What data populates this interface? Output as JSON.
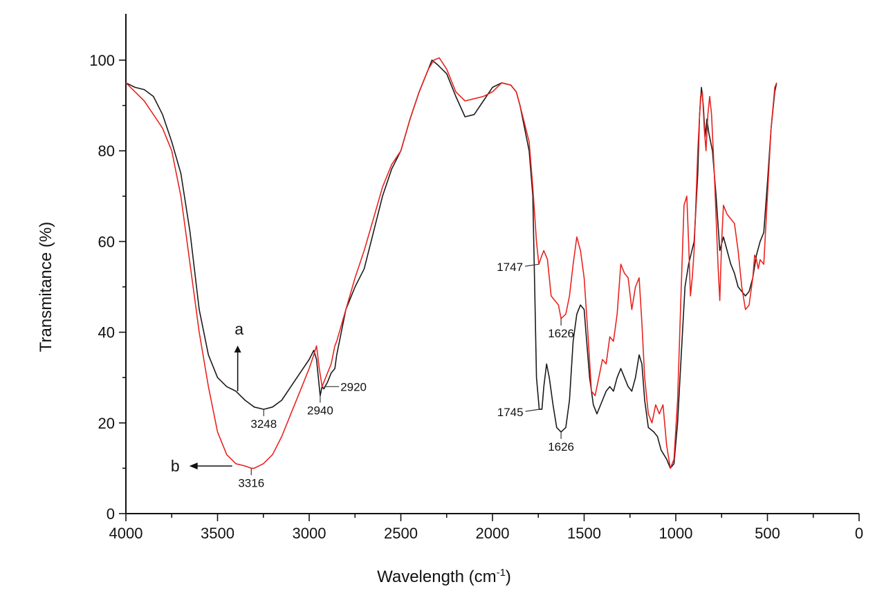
{
  "chart_data": {
    "type": "line",
    "xlabel": "Wavelength (cm",
    "xlabel_sup": "-1",
    "xlabel_close": ")",
    "ylabel": "Transmitance (%)",
    "xlim": [
      4000,
      0
    ],
    "ylim": [
      0,
      110
    ],
    "x_ticks": [
      4000,
      3500,
      3000,
      2500,
      2000,
      1500,
      1000,
      500,
      0
    ],
    "y_ticks": [
      0,
      20,
      40,
      60,
      80,
      100
    ],
    "grid": false,
    "series": [
      {
        "label": "a",
        "color": "#1a1a1a",
        "points": [
          [
            4000,
            95
          ],
          [
            3950,
            94
          ],
          [
            3900,
            93.5
          ],
          [
            3850,
            92
          ],
          [
            3800,
            88
          ],
          [
            3750,
            82
          ],
          [
            3700,
            75
          ],
          [
            3650,
            62
          ],
          [
            3600,
            45
          ],
          [
            3550,
            35
          ],
          [
            3500,
            30
          ],
          [
            3450,
            28
          ],
          [
            3400,
            27
          ],
          [
            3350,
            25
          ],
          [
            3300,
            23.5
          ],
          [
            3248,
            23
          ],
          [
            3200,
            23.5
          ],
          [
            3150,
            25
          ],
          [
            3100,
            28
          ],
          [
            3050,
            31
          ],
          [
            3000,
            34
          ],
          [
            2975,
            36
          ],
          [
            2960,
            34
          ],
          [
            2940,
            26
          ],
          [
            2930,
            28
          ],
          [
            2920,
            27.5
          ],
          [
            2900,
            29
          ],
          [
            2880,
            31
          ],
          [
            2860,
            32
          ],
          [
            2850,
            35
          ],
          [
            2800,
            45
          ],
          [
            2750,
            50
          ],
          [
            2700,
            54
          ],
          [
            2650,
            62
          ],
          [
            2600,
            70
          ],
          [
            2550,
            76
          ],
          [
            2500,
            80
          ],
          [
            2450,
            87
          ],
          [
            2400,
            93
          ],
          [
            2350,
            98
          ],
          [
            2330,
            100
          ],
          [
            2300,
            99
          ],
          [
            2250,
            97
          ],
          [
            2200,
            92
          ],
          [
            2150,
            87.5
          ],
          [
            2100,
            88
          ],
          [
            2050,
            91
          ],
          [
            2000,
            94
          ],
          [
            1950,
            95
          ],
          [
            1900,
            94.5
          ],
          [
            1870,
            93
          ],
          [
            1850,
            90
          ],
          [
            1800,
            80
          ],
          [
            1780,
            70
          ],
          [
            1770,
            50
          ],
          [
            1760,
            30
          ],
          [
            1745,
            23
          ],
          [
            1730,
            23
          ],
          [
            1720,
            28
          ],
          [
            1705,
            33
          ],
          [
            1690,
            30
          ],
          [
            1670,
            24
          ],
          [
            1650,
            19
          ],
          [
            1626,
            18
          ],
          [
            1600,
            19
          ],
          [
            1580,
            25
          ],
          [
            1560,
            38
          ],
          [
            1540,
            44
          ],
          [
            1520,
            46
          ],
          [
            1500,
            45
          ],
          [
            1490,
            40
          ],
          [
            1470,
            30
          ],
          [
            1450,
            24
          ],
          [
            1430,
            22
          ],
          [
            1400,
            25
          ],
          [
            1380,
            27
          ],
          [
            1360,
            28
          ],
          [
            1340,
            27
          ],
          [
            1320,
            30
          ],
          [
            1300,
            32
          ],
          [
            1280,
            30
          ],
          [
            1260,
            28
          ],
          [
            1240,
            27
          ],
          [
            1220,
            30
          ],
          [
            1200,
            35
          ],
          [
            1185,
            33
          ],
          [
            1170,
            25
          ],
          [
            1150,
            19
          ],
          [
            1120,
            18
          ],
          [
            1100,
            17
          ],
          [
            1080,
            14
          ],
          [
            1050,
            12
          ],
          [
            1030,
            10
          ],
          [
            1010,
            11
          ],
          [
            990,
            20
          ],
          [
            970,
            35
          ],
          [
            950,
            50
          ],
          [
            930,
            55
          ],
          [
            900,
            60
          ],
          [
            880,
            75
          ],
          [
            870,
            88
          ],
          [
            860,
            94
          ],
          [
            850,
            90
          ],
          [
            840,
            83
          ],
          [
            830,
            87
          ],
          [
            820,
            84
          ],
          [
            800,
            80
          ],
          [
            780,
            70
          ],
          [
            760,
            58
          ],
          [
            740,
            61
          ],
          [
            720,
            58
          ],
          [
            700,
            55
          ],
          [
            680,
            53
          ],
          [
            660,
            50
          ],
          [
            640,
            49
          ],
          [
            620,
            48
          ],
          [
            600,
            49
          ],
          [
            580,
            52
          ],
          [
            560,
            57
          ],
          [
            540,
            60
          ],
          [
            520,
            62
          ],
          [
            500,
            73
          ],
          [
            480,
            85
          ],
          [
            460,
            93
          ],
          [
            450,
            95
          ]
        ]
      },
      {
        "label": "b",
        "color": "#e8231f",
        "points": [
          [
            4000,
            95
          ],
          [
            3950,
            93
          ],
          [
            3900,
            91
          ],
          [
            3850,
            88
          ],
          [
            3800,
            85
          ],
          [
            3750,
            80
          ],
          [
            3700,
            70
          ],
          [
            3650,
            55
          ],
          [
            3600,
            40
          ],
          [
            3550,
            28
          ],
          [
            3500,
            18
          ],
          [
            3450,
            13
          ],
          [
            3400,
            11
          ],
          [
            3350,
            10.5
          ],
          [
            3316,
            10
          ],
          [
            3300,
            10
          ],
          [
            3250,
            11
          ],
          [
            3200,
            13
          ],
          [
            3150,
            17
          ],
          [
            3100,
            22
          ],
          [
            3050,
            27
          ],
          [
            3000,
            32
          ],
          [
            2975,
            35
          ],
          [
            2960,
            37
          ],
          [
            2945,
            32
          ],
          [
            2930,
            28
          ],
          [
            2920,
            29
          ],
          [
            2900,
            31
          ],
          [
            2880,
            33
          ],
          [
            2860,
            37
          ],
          [
            2850,
            38
          ],
          [
            2800,
            45
          ],
          [
            2750,
            52
          ],
          [
            2700,
            58
          ],
          [
            2650,
            65
          ],
          [
            2600,
            72
          ],
          [
            2550,
            77
          ],
          [
            2500,
            80
          ],
          [
            2450,
            87
          ],
          [
            2400,
            93
          ],
          [
            2350,
            98
          ],
          [
            2320,
            100
          ],
          [
            2290,
            100.5
          ],
          [
            2250,
            98
          ],
          [
            2200,
            93
          ],
          [
            2150,
            91
          ],
          [
            2100,
            91.5
          ],
          [
            2050,
            92
          ],
          [
            2000,
            93
          ],
          [
            1950,
            95
          ],
          [
            1900,
            94.5
          ],
          [
            1870,
            93
          ],
          [
            1850,
            90
          ],
          [
            1800,
            82
          ],
          [
            1780,
            72
          ],
          [
            1760,
            60
          ],
          [
            1747,
            55
          ],
          [
            1730,
            57
          ],
          [
            1720,
            58
          ],
          [
            1700,
            56
          ],
          [
            1680,
            48
          ],
          [
            1660,
            47
          ],
          [
            1640,
            46
          ],
          [
            1626,
            43
          ],
          [
            1600,
            44
          ],
          [
            1580,
            48
          ],
          [
            1560,
            55
          ],
          [
            1540,
            61
          ],
          [
            1520,
            58
          ],
          [
            1500,
            52
          ],
          [
            1480,
            40
          ],
          [
            1460,
            27
          ],
          [
            1440,
            26
          ],
          [
            1420,
            30
          ],
          [
            1400,
            34
          ],
          [
            1380,
            33
          ],
          [
            1360,
            39
          ],
          [
            1340,
            38
          ],
          [
            1320,
            44
          ],
          [
            1300,
            55
          ],
          [
            1280,
            53
          ],
          [
            1260,
            52
          ],
          [
            1240,
            45
          ],
          [
            1220,
            50
          ],
          [
            1200,
            52
          ],
          [
            1185,
            42
          ],
          [
            1170,
            30
          ],
          [
            1150,
            22
          ],
          [
            1130,
            20
          ],
          [
            1110,
            24
          ],
          [
            1090,
            22
          ],
          [
            1070,
            24
          ],
          [
            1050,
            15
          ],
          [
            1030,
            10
          ],
          [
            1010,
            12
          ],
          [
            990,
            25
          ],
          [
            970,
            50
          ],
          [
            955,
            68
          ],
          [
            940,
            70
          ],
          [
            930,
            60
          ],
          [
            920,
            48
          ],
          [
            910,
            52
          ],
          [
            900,
            58
          ],
          [
            880,
            80
          ],
          [
            865,
            92
          ],
          [
            855,
            93
          ],
          [
            845,
            85
          ],
          [
            835,
            80
          ],
          [
            825,
            88
          ],
          [
            815,
            92
          ],
          [
            805,
            88
          ],
          [
            790,
            75
          ],
          [
            770,
            55
          ],
          [
            760,
            47
          ],
          [
            750,
            60
          ],
          [
            740,
            68
          ],
          [
            720,
            66
          ],
          [
            700,
            65
          ],
          [
            680,
            64
          ],
          [
            660,
            58
          ],
          [
            640,
            50
          ],
          [
            620,
            45
          ],
          [
            600,
            46
          ],
          [
            580,
            52
          ],
          [
            570,
            57
          ],
          [
            560,
            56
          ],
          [
            550,
            54
          ],
          [
            540,
            56
          ],
          [
            520,
            55
          ],
          [
            500,
            70
          ],
          [
            480,
            85
          ],
          [
            460,
            94
          ],
          [
            450,
            95
          ]
        ]
      }
    ],
    "annotations": [
      {
        "text": "3248",
        "x": 3248,
        "y": 23,
        "side": "below"
      },
      {
        "text": "2940",
        "x": 2940,
        "y": 26,
        "side": "below"
      },
      {
        "text": "2920",
        "x": 2920,
        "y": 28,
        "side": "right"
      },
      {
        "text": "3316",
        "x": 3316,
        "y": 10,
        "side": "below"
      },
      {
        "text": "1747",
        "x": 1747,
        "y": 55,
        "side": "left"
      },
      {
        "text": "1626",
        "x": 1626,
        "y": 43,
        "side": "below"
      },
      {
        "text": "1745",
        "x": 1745,
        "y": 23,
        "side": "left"
      },
      {
        "text": "1626",
        "x": 1626,
        "y": 18,
        "side": "below"
      }
    ],
    "curve_labels": [
      {
        "text": "a",
        "x": 3390,
        "y": 27,
        "arrow": "up"
      },
      {
        "text": "b",
        "x": 3420,
        "y": 10.5,
        "arrow": "left"
      }
    ]
  }
}
